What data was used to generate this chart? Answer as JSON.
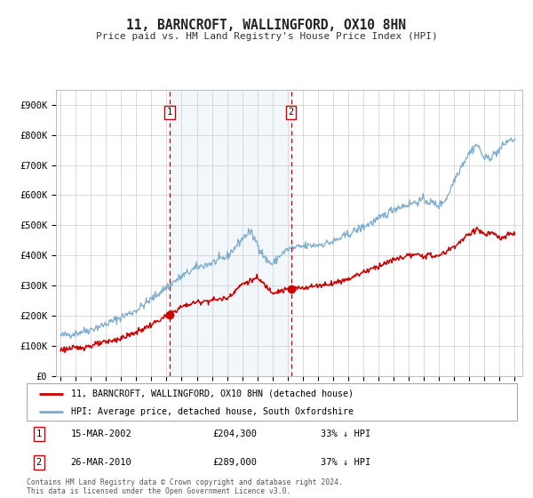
{
  "title": "11, BARNCROFT, WALLINGFORD, OX10 8HN",
  "subtitle": "Price paid vs. HM Land Registry's House Price Index (HPI)",
  "legend_line1": "11, BARNCROFT, WALLINGFORD, OX10 8HN (detached house)",
  "legend_line2": "HPI: Average price, detached house, South Oxfordshire",
  "red_line_color": "#cc0000",
  "blue_line_color": "#7aabcf",
  "vline_color": "#cc0000",
  "shade_color": "#ddeeff",
  "marker_color": "#cc0000",
  "transaction1_date": "15-MAR-2002",
  "transaction1_price": "£204,300",
  "transaction1_hpi": "33% ↓ HPI",
  "transaction1_year": 2002.2,
  "transaction1_red_val": 204300,
  "transaction2_date": "26-MAR-2010",
  "transaction2_price": "£289,000",
  "transaction2_hpi": "37% ↓ HPI",
  "transaction2_year": 2010.23,
  "transaction2_red_val": 289000,
  "footer": "Contains HM Land Registry data © Crown copyright and database right 2024.\nThis data is licensed under the Open Government Licence v3.0.",
  "ylim": [
    0,
    950000
  ],
  "xlim_start": 1994.7,
  "xlim_end": 2025.5,
  "yticks": [
    0,
    100000,
    200000,
    300000,
    400000,
    500000,
    600000,
    700000,
    800000,
    900000
  ],
  "yticklabels": [
    "£0",
    "£100K",
    "£200K",
    "£300K",
    "£400K",
    "£500K",
    "£600K",
    "£700K",
    "£800K",
    "£900K"
  ]
}
